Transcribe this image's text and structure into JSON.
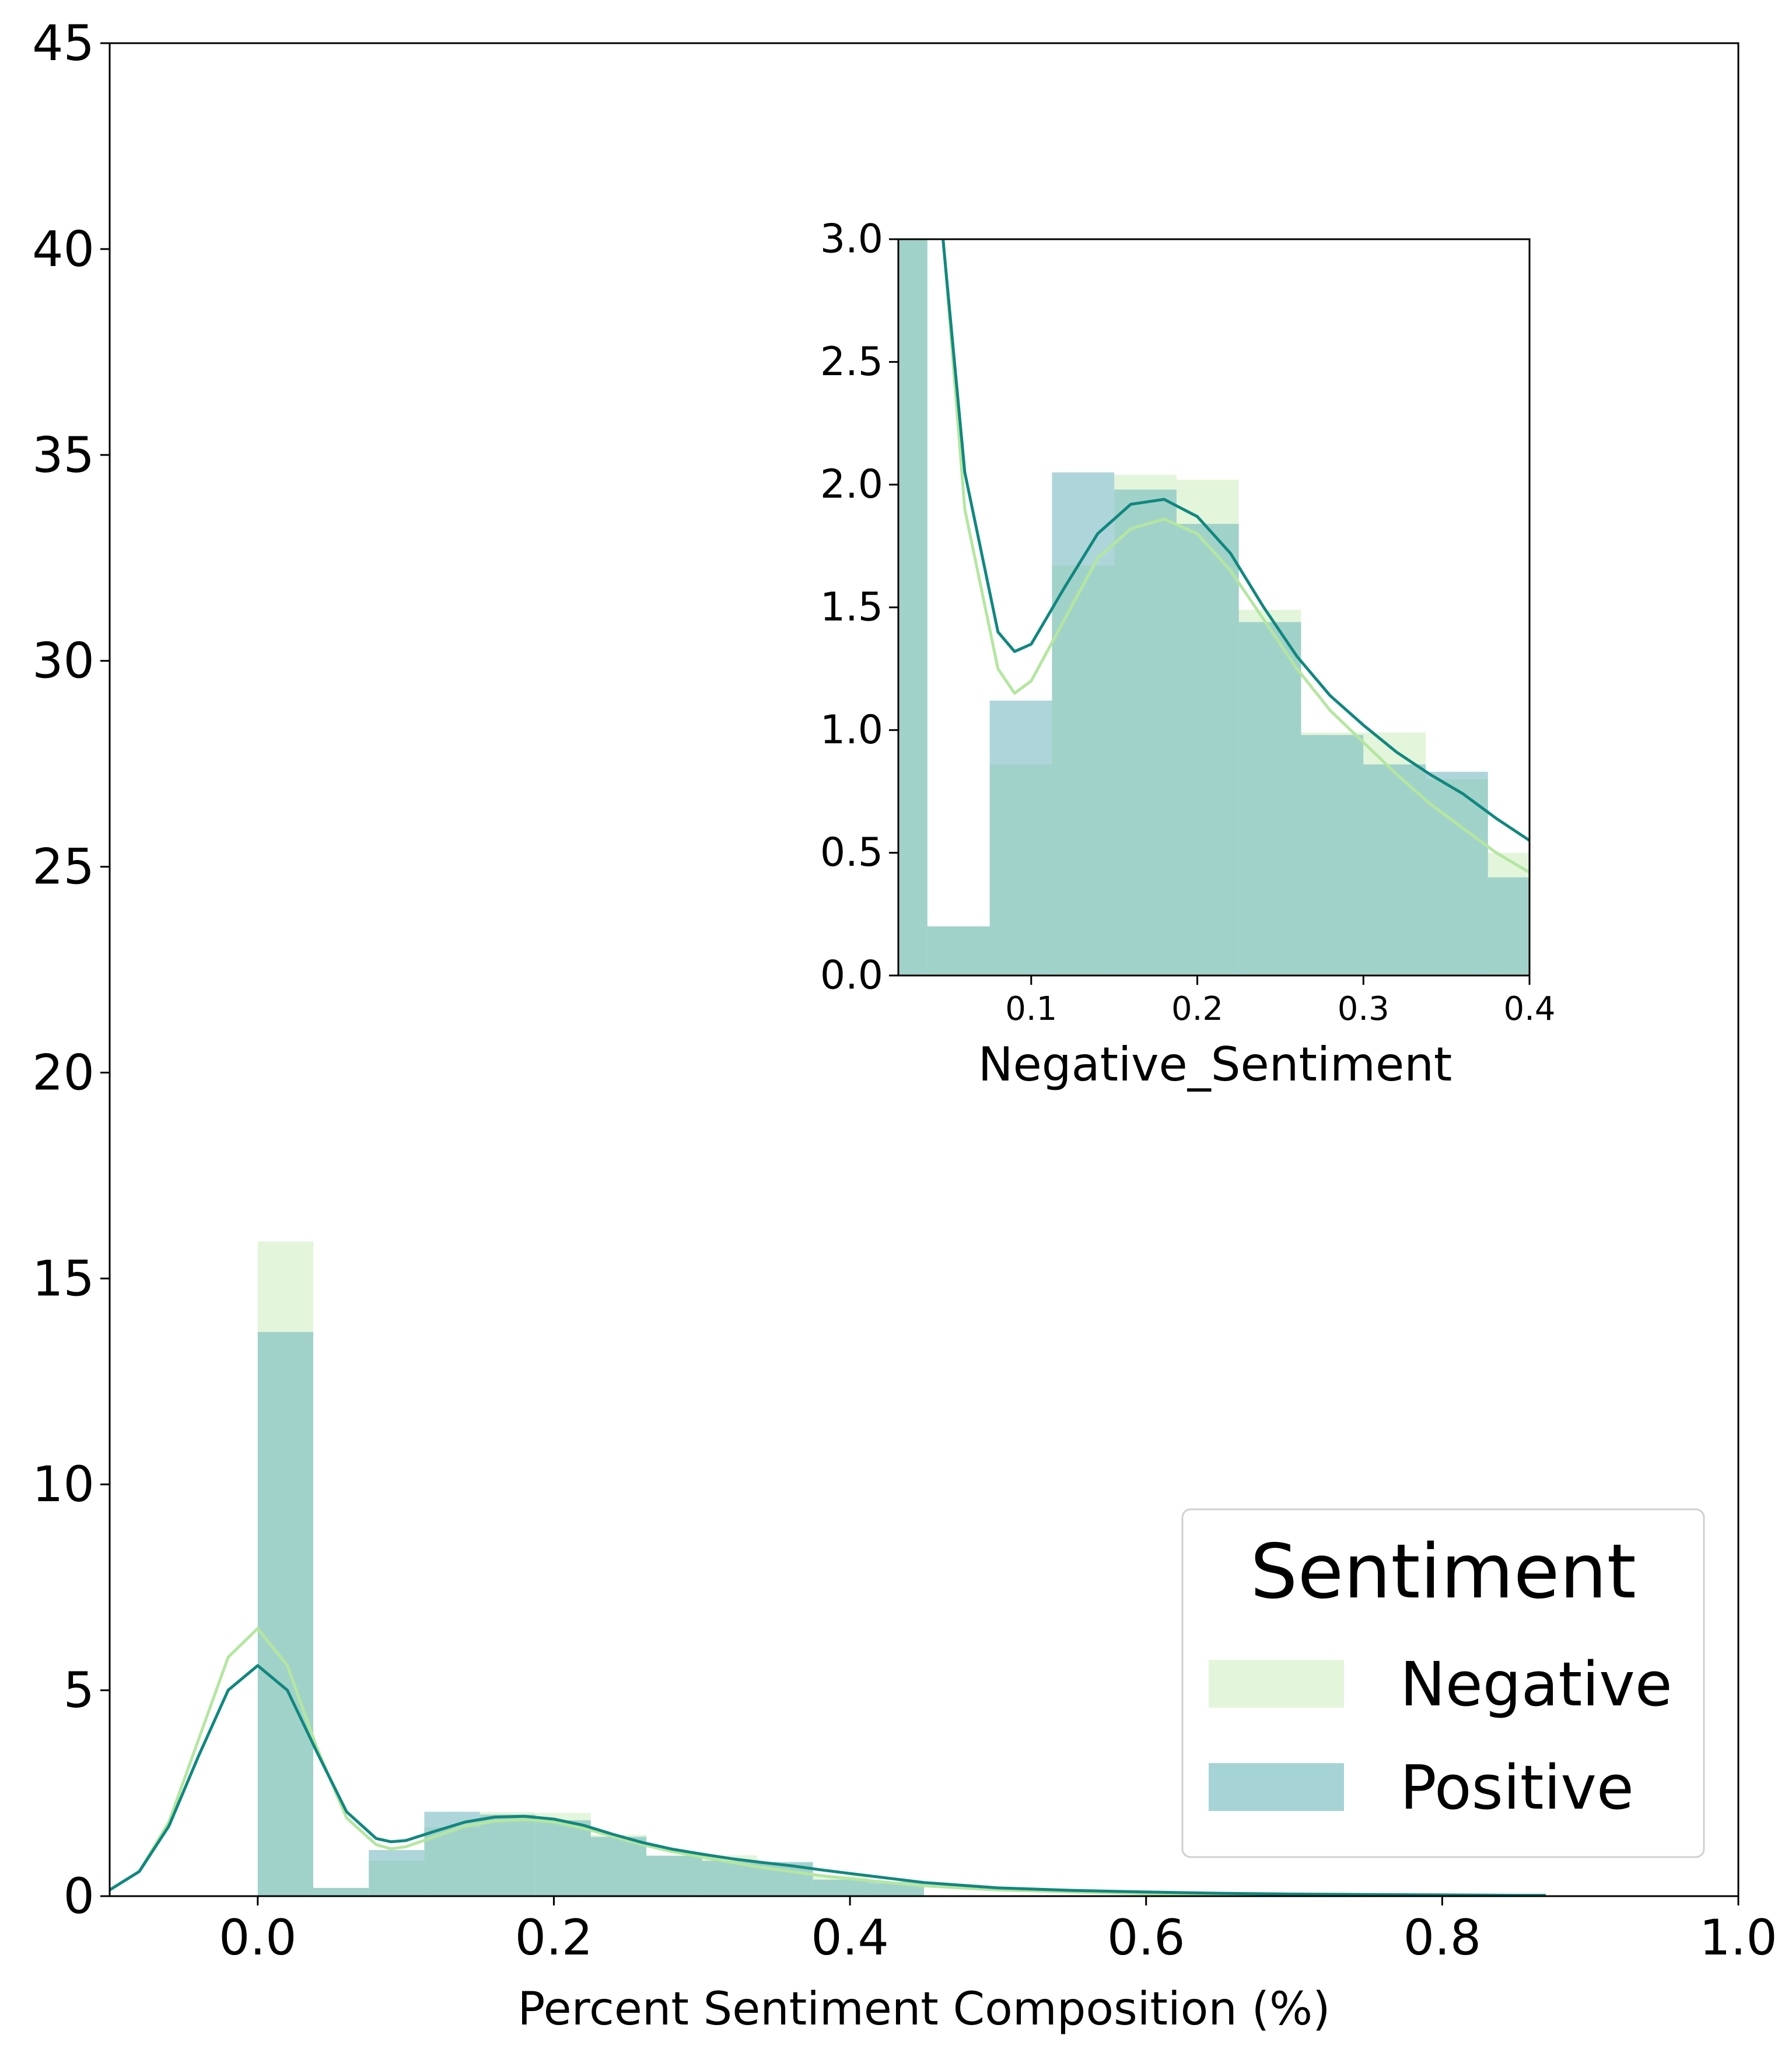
{
  "chart_data": [
    {
      "type": "histogram-kde",
      "xlabel": "Percent Sentiment Composition (%)",
      "ylabel": "",
      "xlim": [
        -0.1,
        1.0
      ],
      "ylim": [
        0,
        45
      ],
      "xticks": [
        "0.0",
        "0.2",
        "0.4",
        "0.6",
        "0.8",
        "1.0"
      ],
      "yticks": [
        "0",
        "5",
        "10",
        "15",
        "20",
        "25",
        "30",
        "35",
        "40",
        "45"
      ],
      "grid": false,
      "legend": {
        "title": "Sentiment",
        "placement": "lower-right",
        "entries": [
          "Negative",
          "Positive"
        ]
      },
      "series": [
        {
          "name": "Negative",
          "bar_color": "#c8ecb8",
          "line_color": "#b4e6a0",
          "bars": [
            {
              "x0": 0.0,
              "x1": 0.0375,
              "y": 15.9
            },
            {
              "x0": 0.0375,
              "x1": 0.075,
              "y": 0.2
            },
            {
              "x0": 0.075,
              "x1": 0.1125,
              "y": 0.86
            },
            {
              "x0": 0.1125,
              "x1": 0.15,
              "y": 1.67
            },
            {
              "x0": 0.15,
              "x1": 0.1875,
              "y": 2.04
            },
            {
              "x0": 0.1875,
              "x1": 0.225,
              "y": 2.02
            },
            {
              "x0": 0.225,
              "x1": 0.2625,
              "y": 1.49
            },
            {
              "x0": 0.2625,
              "x1": 0.3,
              "y": 0.99
            },
            {
              "x0": 0.3,
              "x1": 0.3375,
              "y": 0.99
            },
            {
              "x0": 0.3375,
              "x1": 0.375,
              "y": 0.8
            },
            {
              "x0": 0.375,
              "x1": 0.4125,
              "y": 0.5
            },
            {
              "x0": 0.4125,
              "x1": 0.45,
              "y": 0.3
            }
          ],
          "kde": {
            "x": [
              -0.1,
              -0.08,
              -0.06,
              -0.04,
              -0.02,
              0.0,
              0.02,
              0.04,
              0.06,
              0.08,
              0.09,
              0.1,
              0.12,
              0.14,
              0.16,
              0.18,
              0.2,
              0.22,
              0.24,
              0.26,
              0.28,
              0.3,
              0.32,
              0.34,
              0.36,
              0.38,
              0.4,
              0.45,
              0.5,
              0.55,
              0.6,
              0.65,
              0.7,
              0.75,
              0.8,
              0.85,
              0.87
            ],
            "y": [
              0.15,
              0.6,
              1.8,
              3.8,
              5.8,
              6.5,
              5.6,
              3.6,
              1.9,
              1.25,
              1.15,
              1.2,
              1.45,
              1.7,
              1.82,
              1.86,
              1.8,
              1.65,
              1.45,
              1.25,
              1.08,
              0.95,
              0.82,
              0.7,
              0.6,
              0.5,
              0.42,
              0.25,
              0.15,
              0.1,
              0.06,
              0.04,
              0.03,
              0.02,
              0.01,
              0.0,
              0.0
            ]
          }
        },
        {
          "name": "Positive",
          "bar_color": "#6bb5bb",
          "line_color": "#11877f",
          "bars": [
            {
              "x0": 0.0,
              "x1": 0.0375,
              "y": 13.7
            },
            {
              "x0": 0.0375,
              "x1": 0.075,
              "y": 0.2
            },
            {
              "x0": 0.075,
              "x1": 0.1125,
              "y": 1.12
            },
            {
              "x0": 0.1125,
              "x1": 0.15,
              "y": 2.05
            },
            {
              "x0": 0.15,
              "x1": 0.1875,
              "y": 1.98
            },
            {
              "x0": 0.1875,
              "x1": 0.225,
              "y": 1.84
            },
            {
              "x0": 0.225,
              "x1": 0.2625,
              "y": 1.44
            },
            {
              "x0": 0.2625,
              "x1": 0.3,
              "y": 0.98
            },
            {
              "x0": 0.3,
              "x1": 0.3375,
              "y": 0.86
            },
            {
              "x0": 0.3375,
              "x1": 0.375,
              "y": 0.83
            },
            {
              "x0": 0.375,
              "x1": 0.4125,
              "y": 0.4
            },
            {
              "x0": 0.4125,
              "x1": 0.45,
              "y": 0.35
            }
          ],
          "kde": {
            "x": [
              -0.1,
              -0.08,
              -0.06,
              -0.04,
              -0.02,
              0.0,
              0.02,
              0.04,
              0.06,
              0.08,
              0.09,
              0.1,
              0.12,
              0.14,
              0.16,
              0.18,
              0.2,
              0.22,
              0.24,
              0.26,
              0.28,
              0.3,
              0.32,
              0.34,
              0.36,
              0.38,
              0.4,
              0.45,
              0.5,
              0.55,
              0.6,
              0.65,
              0.7,
              0.75,
              0.8,
              0.85,
              0.87
            ],
            "y": [
              0.15,
              0.6,
              1.7,
              3.4,
              5.0,
              5.6,
              5.0,
              3.5,
              2.05,
              1.4,
              1.32,
              1.35,
              1.58,
              1.8,
              1.92,
              1.94,
              1.87,
              1.72,
              1.5,
              1.3,
              1.14,
              1.02,
              0.91,
              0.82,
              0.74,
              0.64,
              0.55,
              0.33,
              0.2,
              0.14,
              0.1,
              0.07,
              0.05,
              0.04,
              0.03,
              0.02,
              0.02
            ]
          }
        }
      ]
    },
    {
      "type": "histogram-kde",
      "xlabel": "Negative_Sentiment",
      "ylabel": "",
      "xlim": [
        0.02,
        0.4
      ],
      "ylim": [
        0,
        3.0
      ],
      "xticks": [
        "0.1",
        "0.2",
        "0.3",
        "0.4"
      ],
      "yticks": [
        "0.0",
        "0.5",
        "1.0",
        "1.5",
        "2.0",
        "2.5",
        "3.0"
      ],
      "grid": false,
      "placement": "inset-top-right"
    }
  ]
}
